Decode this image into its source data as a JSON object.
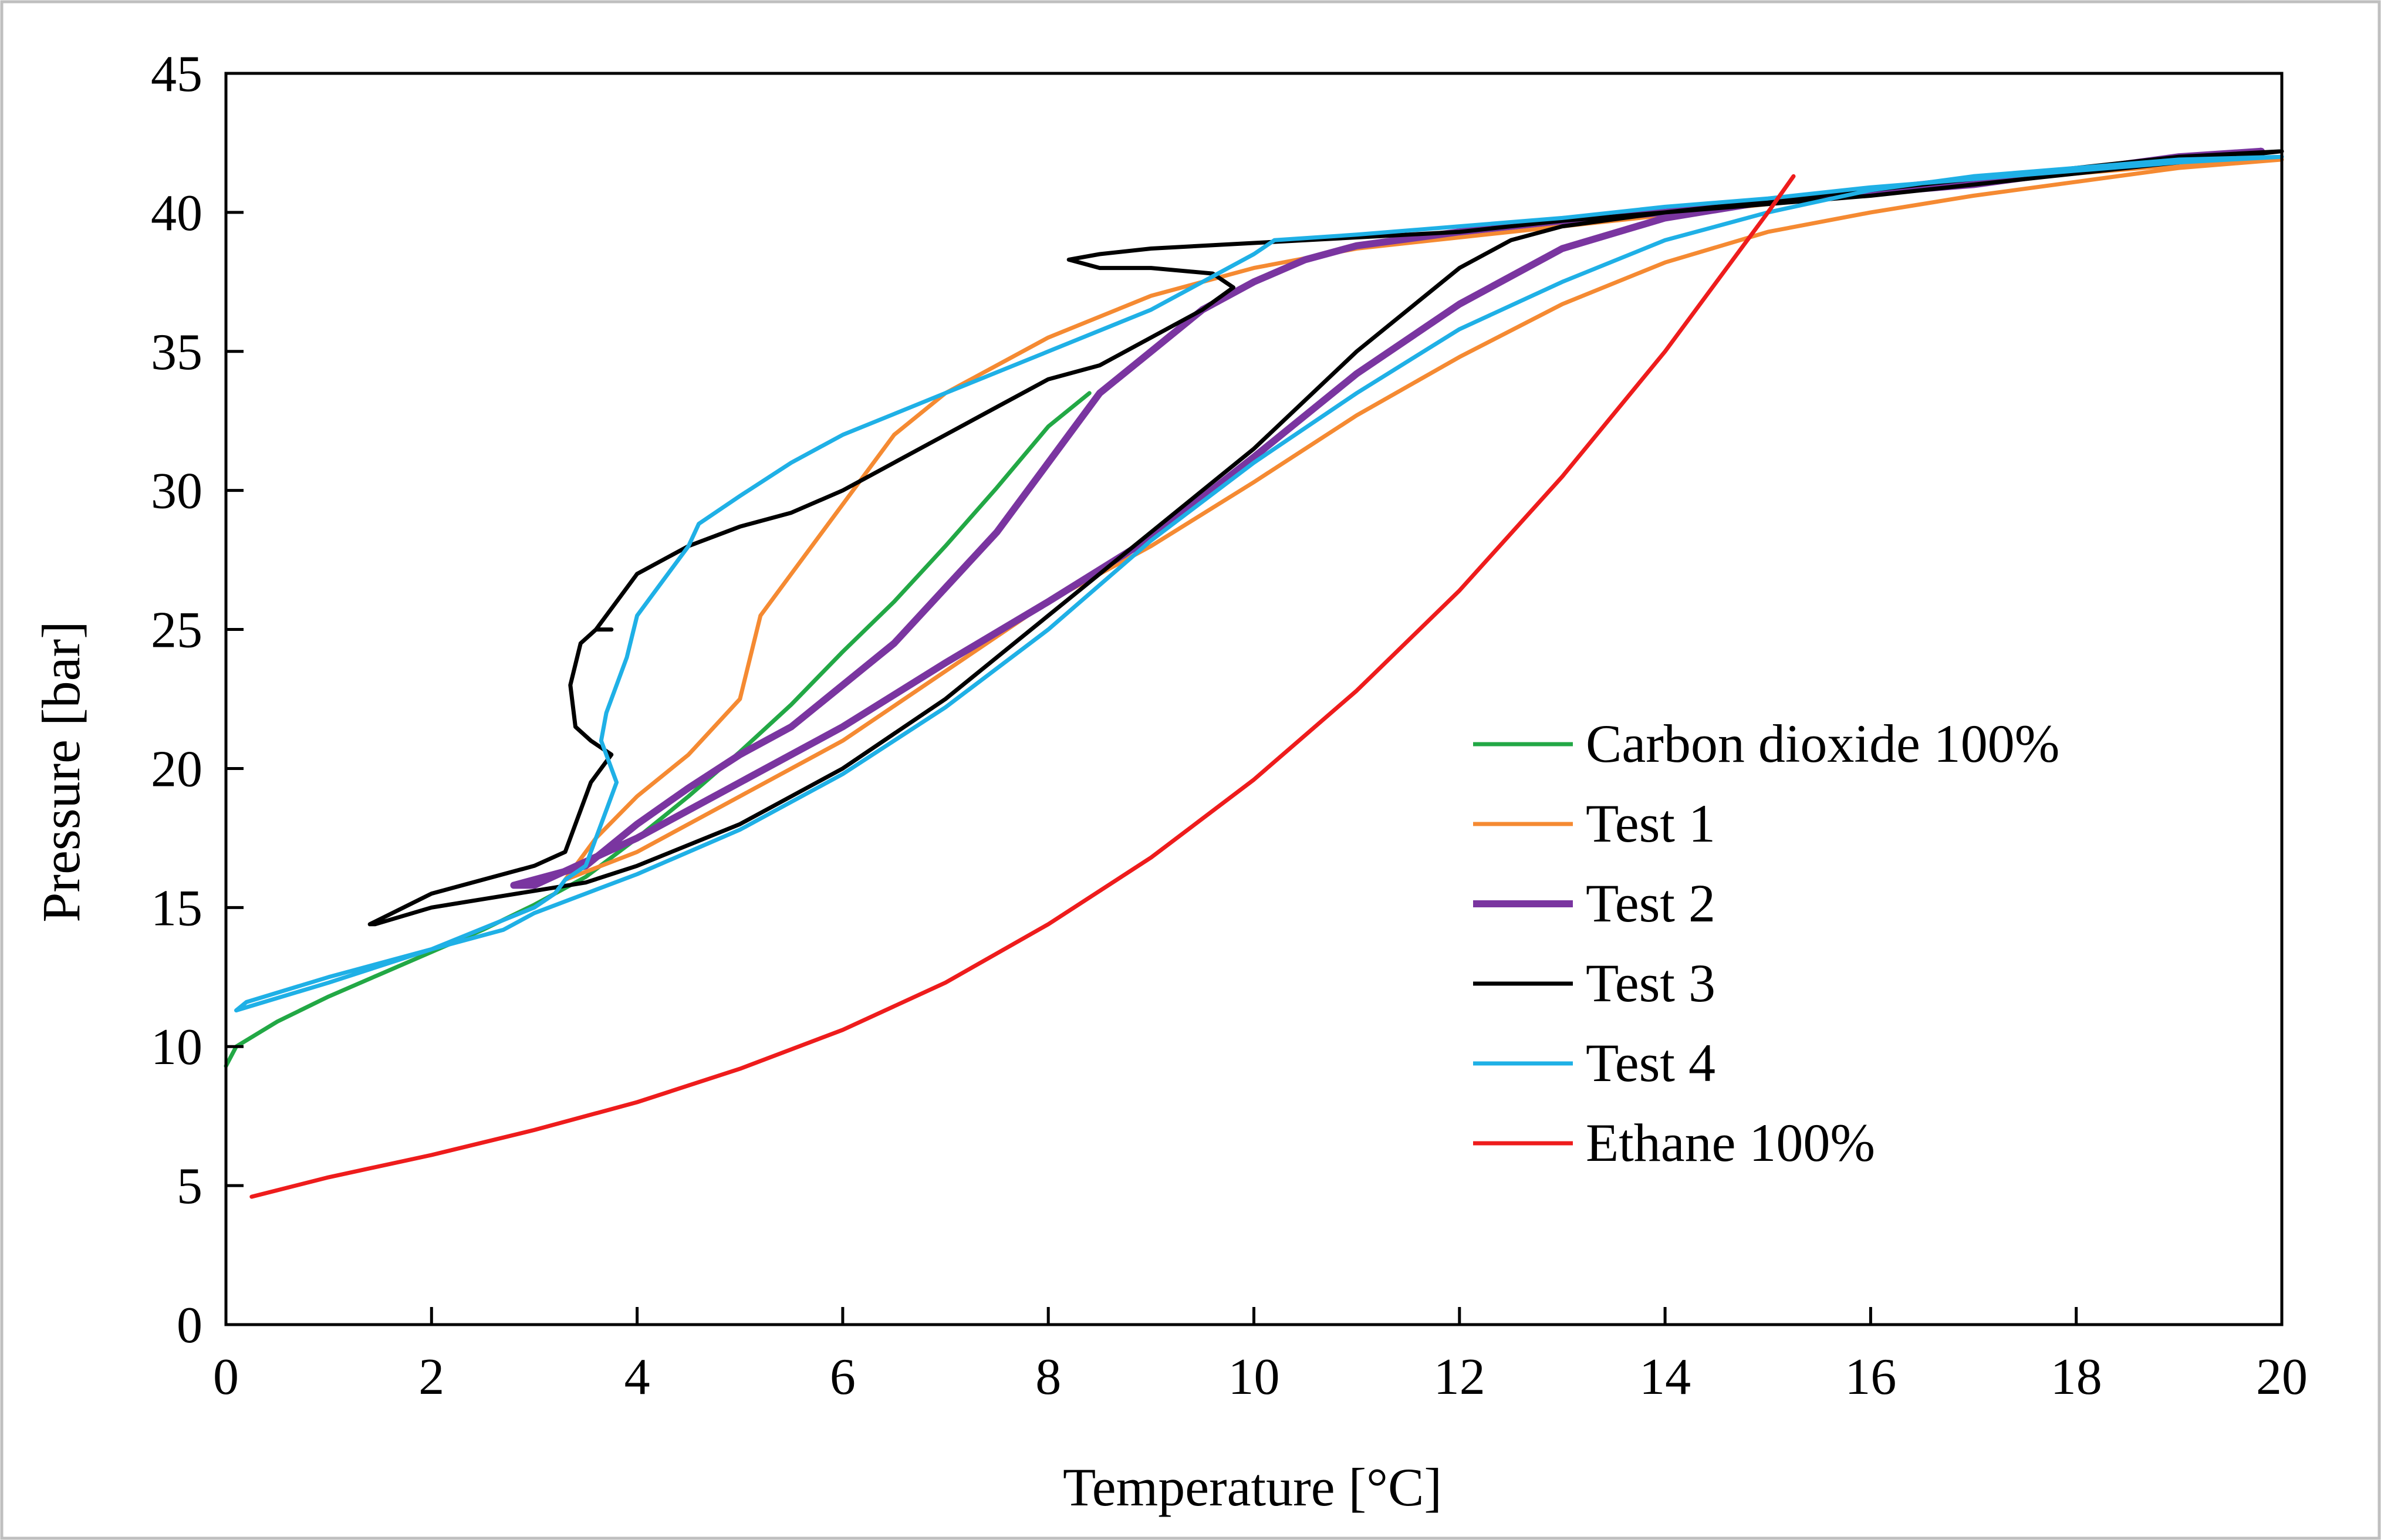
{
  "chart_data": {
    "type": "line",
    "title": "",
    "xlabel": "Temperature [°C]",
    "ylabel": "Pressure [bar]",
    "xlim": [
      0,
      20
    ],
    "ylim": [
      0,
      45
    ],
    "xticks": [
      0,
      2,
      4,
      6,
      8,
      10,
      12,
      14,
      16,
      18,
      20
    ],
    "yticks": [
      0,
      5,
      10,
      15,
      20,
      25,
      30,
      35,
      40,
      45
    ],
    "grid": false,
    "legend_position": "right-center",
    "series": [
      {
        "name": "Carbon dioxide 100%",
        "color": "#22a845",
        "weight": "normal",
        "x": [
          0.0,
          0.1,
          0.5,
          1.0,
          1.5,
          2.0,
          2.5,
          3.0,
          3.5,
          4.0,
          4.5,
          5.0,
          5.5,
          6.0,
          6.5,
          7.0,
          7.5,
          8.0,
          8.4
        ],
        "y": [
          9.3,
          10.0,
          10.9,
          11.8,
          12.6,
          13.4,
          14.2,
          15.1,
          16.1,
          17.5,
          19.0,
          20.6,
          22.3,
          24.2,
          26.0,
          28.0,
          30.1,
          32.3,
          33.5
        ]
      },
      {
        "name": "Test 1",
        "color": "#f58a32",
        "weight": "normal",
        "x": [
          3.3,
          3.6,
          4.0,
          4.5,
          5.0,
          5.2,
          5.5,
          6.0,
          6.5,
          7.0,
          7.5,
          8.0,
          9.0,
          10.0,
          11.0,
          12.0,
          13.0,
          14.0,
          15.0,
          16.0,
          17.0,
          18.0,
          19.0,
          20.0,
          19.0,
          18.0,
          17.0,
          16.0,
          15.0,
          14.0,
          13.0,
          12.0,
          11.0,
          10.0,
          9.0,
          8.0,
          7.0,
          6.0,
          5.0,
          4.0,
          3.3
        ],
        "y": [
          16.0,
          17.5,
          19.0,
          20.5,
          22.5,
          25.5,
          27.0,
          29.5,
          32.0,
          33.5,
          34.5,
          35.5,
          37.0,
          38.0,
          38.7,
          39.1,
          39.5,
          39.9,
          40.3,
          40.7,
          41.1,
          41.4,
          41.7,
          41.9,
          41.6,
          41.1,
          40.6,
          40.0,
          39.3,
          38.2,
          36.7,
          34.8,
          32.7,
          30.3,
          28.0,
          26.0,
          23.5,
          21.0,
          19.0,
          17.0,
          16.0
        ]
      },
      {
        "name": "Test 2",
        "color": "#7a35a0",
        "weight": "bold",
        "x": [
          2.8,
          3.5,
          4.0,
          4.5,
          5.0,
          5.5,
          6.0,
          6.5,
          7.0,
          7.5,
          8.0,
          8.5,
          9.0,
          9.5,
          10.0,
          10.5,
          11.0,
          12.0,
          13.0,
          14.0,
          15.0,
          16.0,
          17.0,
          18.0,
          19.0,
          19.8,
          19.0,
          18.0,
          17.0,
          16.0,
          15.0,
          14.0,
          13.0,
          12.0,
          11.0,
          10.0,
          9.0,
          8.0,
          7.0,
          6.0,
          5.0,
          4.0,
          3.0,
          2.8
        ],
        "y": [
          15.8,
          16.5,
          18.0,
          19.3,
          20.5,
          21.5,
          23.0,
          24.5,
          26.5,
          28.5,
          31.0,
          33.5,
          35.0,
          36.5,
          37.5,
          38.3,
          38.8,
          39.3,
          39.7,
          40.0,
          40.4,
          40.8,
          41.2,
          41.5,
          41.9,
          42.2,
          42.0,
          41.5,
          41.0,
          40.7,
          40.4,
          39.8,
          38.7,
          36.7,
          34.2,
          31.2,
          28.3,
          26.0,
          23.8,
          21.5,
          19.5,
          17.5,
          15.8,
          15.8
        ]
      },
      {
        "name": "Test 3",
        "color": "#000000",
        "weight": "normal",
        "x": [
          20.0,
          19.0,
          18.0,
          17.0,
          16.0,
          15.0,
          14.0,
          13.0,
          12.0,
          11.0,
          10.0,
          9.0,
          8.5,
          8.2,
          8.5,
          9.0,
          9.6,
          9.8,
          9.5,
          9.0,
          8.5,
          8.0,
          7.5,
          7.0,
          6.5,
          6.0,
          5.5,
          5.0,
          4.5,
          4.0,
          3.8,
          3.6,
          3.75,
          3.6,
          3.45,
          3.35,
          3.4,
          3.55,
          3.75,
          3.55,
          3.45,
          3.3,
          3.0,
          2.0,
          1.4,
          1.45,
          2.0,
          2.5,
          3.0,
          3.5,
          4.0,
          5.0,
          6.0,
          7.0,
          8.0,
          9.0,
          10.0,
          11.0,
          12.0,
          12.5,
          13.0,
          14.0,
          15.0,
          16.0,
          17.0,
          18.0,
          19.0,
          20.0
        ],
        "y": [
          42.2,
          41.8,
          41.4,
          41.0,
          40.6,
          40.3,
          40.0,
          39.7,
          39.3,
          39.1,
          38.9,
          38.7,
          38.5,
          38.3,
          38.0,
          38.0,
          37.8,
          37.3,
          36.5,
          35.5,
          34.5,
          34.0,
          33.0,
          32.0,
          31.0,
          30.0,
          29.2,
          28.7,
          28.0,
          27.0,
          26.0,
          25.0,
          25.0,
          25.0,
          24.5,
          23.0,
          21.5,
          21.0,
          20.5,
          19.5,
          18.5,
          17.0,
          16.5,
          15.5,
          14.4,
          14.4,
          15.0,
          15.3,
          15.6,
          15.9,
          16.5,
          18.0,
          20.0,
          22.5,
          25.5,
          28.5,
          31.5,
          35.0,
          38.0,
          39.0,
          39.5,
          40.0,
          40.4,
          40.8,
          41.2,
          41.6,
          42.0,
          42.2
        ]
      },
      {
        "name": "Test 4",
        "color": "#1fb0e6",
        "weight": "normal",
        "x": [
          20.0,
          19.0,
          18.0,
          17.0,
          16.0,
          15.0,
          14.0,
          13.0,
          12.0,
          11.0,
          10.2,
          10.0,
          9.0,
          8.0,
          7.0,
          6.0,
          5.5,
          5.0,
          4.6,
          4.5,
          4.4,
          4.2,
          4.0,
          3.9,
          3.8,
          3.7,
          3.65,
          3.75,
          3.8,
          3.7,
          3.6,
          3.5,
          3.3,
          3.2,
          3.0,
          2.0,
          1.0,
          0.1,
          0.2,
          1.0,
          2.0,
          2.7,
          3.0,
          3.5,
          4.0,
          5.0,
          6.0,
          7.0,
          8.0,
          9.0,
          10.0,
          11.0,
          12.0,
          13.0,
          14.0,
          15.0,
          16.0,
          17.0,
          18.0,
          19.0,
          20.0
        ],
        "y": [
          42.0,
          41.8,
          41.5,
          41.2,
          40.9,
          40.5,
          40.2,
          39.8,
          39.5,
          39.2,
          39.0,
          38.5,
          36.5,
          35.0,
          33.5,
          32.0,
          31.0,
          29.8,
          28.8,
          28.0,
          27.5,
          26.5,
          25.5,
          24.0,
          23.0,
          22.0,
          21.0,
          20.0,
          19.5,
          18.5,
          17.5,
          16.5,
          16.0,
          15.5,
          15.0,
          13.5,
          12.3,
          11.3,
          11.6,
          12.5,
          13.5,
          14.2,
          14.8,
          15.5,
          16.2,
          17.8,
          19.8,
          22.2,
          25.0,
          28.2,
          31.0,
          33.5,
          35.8,
          37.5,
          39.0,
          40.0,
          40.8,
          41.3,
          41.6,
          41.9,
          42.0
        ]
      },
      {
        "name": "Ethane 100%",
        "color": "#ee1c1c",
        "weight": "normal",
        "x": [
          0.25,
          1.0,
          2.0,
          3.0,
          4.0,
          5.0,
          6.0,
          7.0,
          8.0,
          9.0,
          10.0,
          11.0,
          12.0,
          13.0,
          14.0,
          15.0,
          15.25
        ],
        "y": [
          4.6,
          5.3,
          6.1,
          7.0,
          8.0,
          9.2,
          10.6,
          12.3,
          14.4,
          16.8,
          19.6,
          22.8,
          26.4,
          30.5,
          35.0,
          40.0,
          41.3
        ]
      }
    ]
  }
}
